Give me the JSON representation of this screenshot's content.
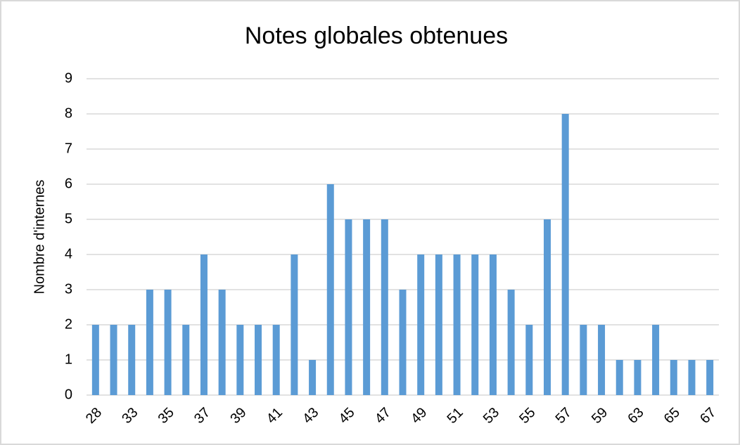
{
  "chart_data": {
    "type": "bar",
    "title": "Notes globales obtenues",
    "y_label": "Nombre d'internes",
    "categories": [
      "28",
      null,
      "33",
      null,
      "35",
      null,
      "37",
      null,
      "39",
      null,
      "41",
      null,
      "43",
      null,
      "45",
      null,
      "47",
      null,
      "49",
      null,
      "51",
      null,
      "53",
      null,
      "55",
      null,
      "57",
      null,
      "59",
      null,
      "63",
      null,
      "65",
      null,
      "67"
    ],
    "values": [
      2,
      2,
      2,
      3,
      3,
      2,
      4,
      3,
      2,
      2,
      2,
      4,
      1,
      6,
      5,
      5,
      5,
      3,
      4,
      4,
      4,
      4,
      4,
      3,
      2,
      5,
      8,
      2,
      2,
      1,
      1,
      2,
      1,
      1,
      1
    ],
    "color": "#5b9bd5",
    "ylim": [
      0,
      9
    ],
    "yticks": [
      0,
      1,
      2,
      3,
      4,
      5,
      6,
      7,
      8,
      9
    ],
    "grid": true
  }
}
